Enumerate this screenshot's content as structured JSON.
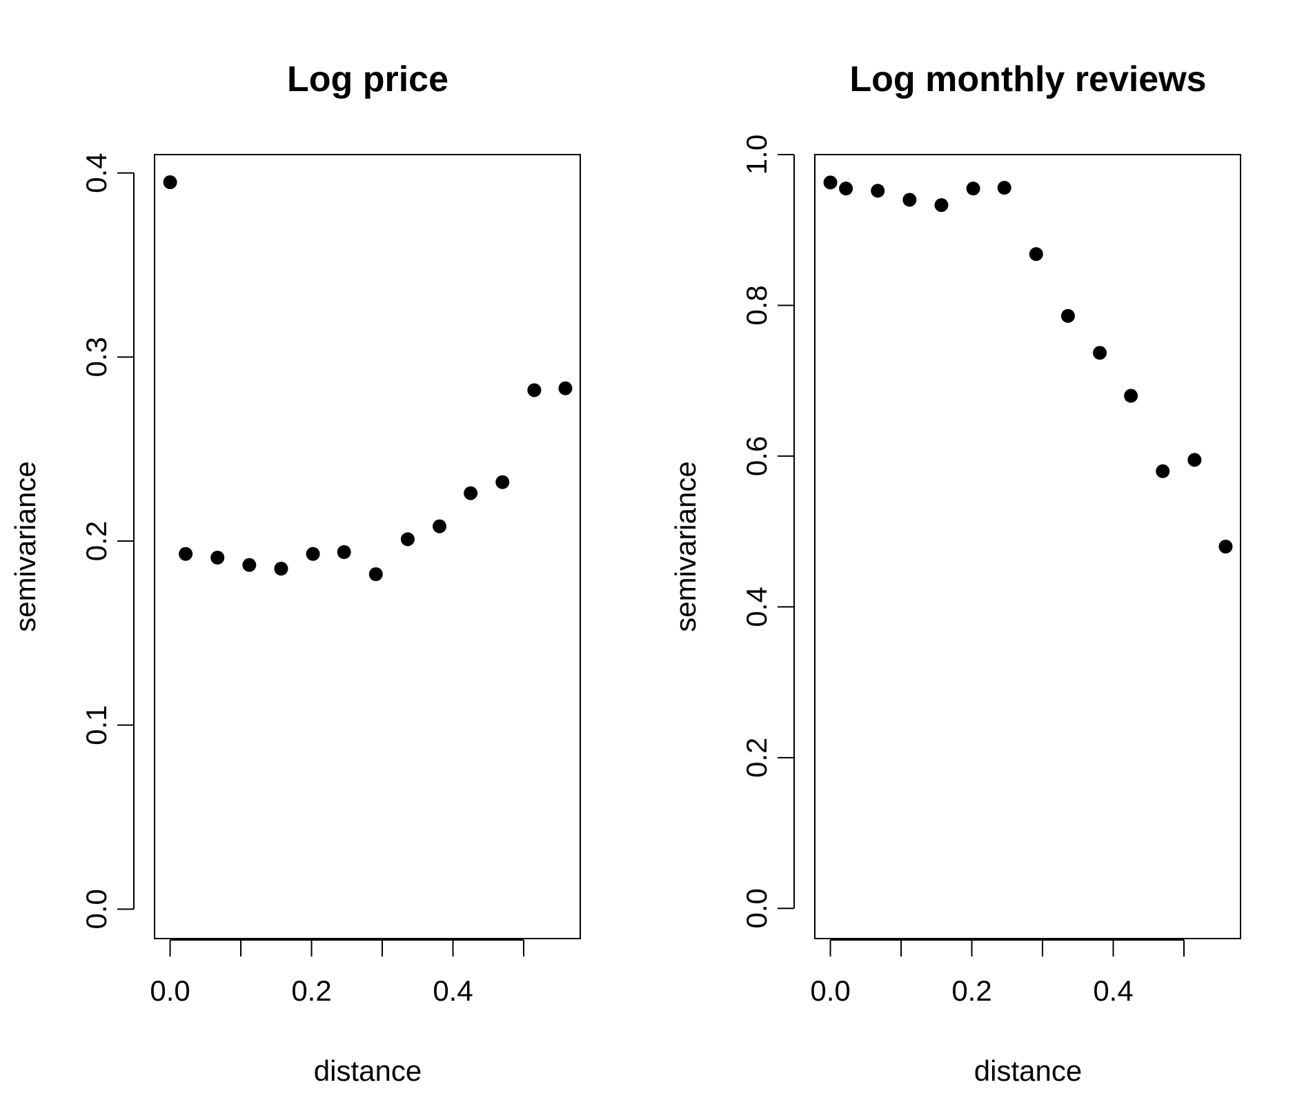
{
  "chart_data": [
    {
      "type": "scatter",
      "title": "Log price",
      "xlabel": "distance",
      "ylabel": "semivariance",
      "xlim": [
        -0.022,
        0.58
      ],
      "ylim": [
        -0.016,
        0.41
      ],
      "xticks": [
        0.0,
        0.1,
        0.2,
        0.3,
        0.4,
        0.5
      ],
      "xtick_labels": [
        "0.0",
        "",
        "0.2",
        "",
        "0.4",
        ""
      ],
      "yticks": [
        0.0,
        0.1,
        0.2,
        0.3,
        0.4
      ],
      "ytick_labels": [
        "0.0",
        "0.1",
        "0.2",
        "0.3",
        "0.4"
      ],
      "grid": false,
      "marker_color": "#000000",
      "x": [
        0.0,
        0.022,
        0.067,
        0.112,
        0.157,
        0.202,
        0.246,
        0.291,
        0.336,
        0.381,
        0.425,
        0.47,
        0.515,
        0.559
      ],
      "y": [
        0.395,
        0.193,
        0.191,
        0.187,
        0.185,
        0.193,
        0.194,
        0.182,
        0.201,
        0.208,
        0.226,
        0.232,
        0.282,
        0.283
      ]
    },
    {
      "type": "scatter",
      "title": "Log monthly reviews",
      "xlabel": "distance",
      "ylabel": "semivariance",
      "xlim": [
        -0.022,
        0.58
      ],
      "ylim": [
        -0.04,
        1.0
      ],
      "xticks": [
        0.0,
        0.1,
        0.2,
        0.3,
        0.4,
        0.5
      ],
      "xtick_labels": [
        "0.0",
        "",
        "0.2",
        "",
        "0.4",
        ""
      ],
      "yticks": [
        0.0,
        0.2,
        0.4,
        0.6,
        0.8,
        1.0
      ],
      "ytick_labels": [
        "0.0",
        "0.2",
        "0.4",
        "0.6",
        "0.8",
        "1.0"
      ],
      "grid": false,
      "marker_color": "#000000",
      "x": [
        0.0,
        0.022,
        0.067,
        0.112,
        0.157,
        0.202,
        0.246,
        0.291,
        0.336,
        0.381,
        0.425,
        0.47,
        0.515,
        0.559
      ],
      "y": [
        0.963,
        0.955,
        0.952,
        0.94,
        0.933,
        0.955,
        0.956,
        0.868,
        0.786,
        0.737,
        0.68,
        0.58,
        0.595,
        0.48
      ]
    }
  ]
}
